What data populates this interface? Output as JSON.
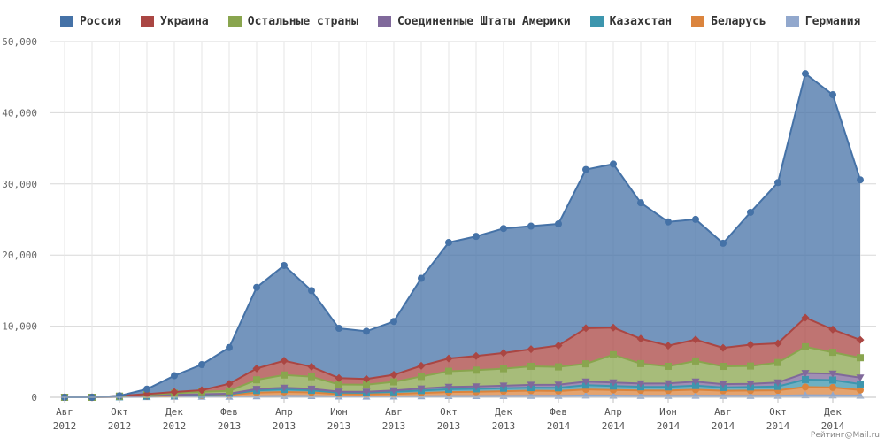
{
  "watermark": "Рейтинг@Mail.ru",
  "chart_data": {
    "type": "area",
    "stacked": true,
    "title": "",
    "xlabel": "",
    "ylabel": "",
    "ylim": [
      0,
      50000
    ],
    "yticks": [
      0,
      10000,
      20000,
      30000,
      40000,
      50000
    ],
    "ytick_labels": [
      "0",
      "10,000",
      "20,000",
      "30,000",
      "40,000",
      "50,000"
    ],
    "grid": true,
    "legend_position": "top-left",
    "x": [
      "2012-08",
      "2012-09",
      "2012-10",
      "2012-11",
      "2012-12",
      "2013-01",
      "2013-02",
      "2013-03",
      "2013-04",
      "2013-05",
      "2013-06",
      "2013-07",
      "2013-08",
      "2013-09",
      "2013-10",
      "2013-11",
      "2013-12",
      "2014-01",
      "2014-02",
      "2014-03",
      "2014-04",
      "2014-05",
      "2014-06",
      "2014-07",
      "2014-08",
      "2014-09",
      "2014-10",
      "2014-11",
      "2014-12",
      "2015-01"
    ],
    "xtick_labels": [
      {
        "month": "Авг",
        "year": "2012"
      },
      {
        "month": "Окт",
        "year": "2012"
      },
      {
        "month": "Дек",
        "year": "2012"
      },
      {
        "month": "Фев",
        "year": "2013"
      },
      {
        "month": "Апр",
        "year": "2013"
      },
      {
        "month": "Июн",
        "year": "2013"
      },
      {
        "month": "Авг",
        "year": "2013"
      },
      {
        "month": "Окт",
        "year": "2013"
      },
      {
        "month": "Дек",
        "year": "2013"
      },
      {
        "month": "Фев",
        "year": "2014"
      },
      {
        "month": "Апр",
        "year": "2014"
      },
      {
        "month": "Июн",
        "year": "2014"
      },
      {
        "month": "Авг",
        "year": "2014"
      },
      {
        "month": "Окт",
        "year": "2014"
      },
      {
        "month": "Дек",
        "year": "2014"
      }
    ],
    "series": [
      {
        "name": "Германия",
        "color": "#92a8cd",
        "marker": "triangle",
        "values": [
          0,
          0,
          30,
          50,
          70,
          90,
          100,
          160,
          200,
          180,
          120,
          110,
          120,
          150,
          180,
          190,
          200,
          210,
          210,
          260,
          250,
          220,
          220,
          240,
          210,
          220,
          230,
          300,
          280,
          250
        ]
      },
      {
        "name": "Беларусь",
        "color": "#db843d",
        "marker": "circle",
        "values": [
          0,
          0,
          30,
          80,
          150,
          200,
          240,
          500,
          550,
          500,
          330,
          300,
          350,
          450,
          550,
          580,
          650,
          720,
          670,
          850,
          780,
          750,
          730,
          830,
          700,
          730,
          750,
          1150,
          1100,
          770
        ]
      },
      {
        "name": "Казахстан",
        "color": "#3d96ae",
        "marker": "square",
        "values": [
          0,
          0,
          20,
          50,
          70,
          80,
          100,
          300,
          350,
          300,
          200,
          220,
          300,
          350,
          400,
          420,
          430,
          430,
          450,
          600,
          550,
          500,
          510,
          580,
          470,
          500,
          550,
          1050,
          1050,
          850
        ]
      },
      {
        "name": "Соединенные Штаты Америки",
        "color": "#80699b",
        "marker": "triangle-down",
        "values": [
          0,
          0,
          10,
          30,
          50,
          60,
          60,
          200,
          240,
          220,
          150,
          150,
          200,
          280,
          330,
          330,
          350,
          400,
          450,
          500,
          510,
          470,
          500,
          560,
          470,
          450,
          560,
          900,
          900,
          900
        ]
      },
      {
        "name": "Остальные страны",
        "color": "#89a54e",
        "marker": "square",
        "values": [
          0,
          0,
          70,
          160,
          240,
          350,
          400,
          1300,
          1800,
          1700,
          1000,
          1000,
          1200,
          1700,
          2200,
          2300,
          2400,
          2600,
          2500,
          2500,
          3900,
          2800,
          2400,
          2900,
          2500,
          2500,
          2800,
          3700,
          3000,
          2800
        ]
      },
      {
        "name": "Украина",
        "color": "#aa4643",
        "marker": "diamond",
        "values": [
          0,
          0,
          40,
          80,
          160,
          220,
          1000,
          1600,
          2000,
          1400,
          900,
          800,
          1000,
          1500,
          1800,
          2000,
          2200,
          2400,
          3000,
          5000,
          3800,
          3500,
          2900,
          3000,
          2600,
          3000,
          2700,
          4100,
          3200,
          2500
        ]
      },
      {
        "name": "Россия",
        "color": "#4572a7",
        "marker": "circle",
        "values": [
          0,
          0,
          0,
          700,
          2300,
          3600,
          5100,
          11400,
          13400,
          10700,
          7000,
          6700,
          7500,
          12300,
          16300,
          16800,
          17500,
          17300,
          17100,
          22300,
          23000,
          19100,
          17400,
          16900,
          14700,
          18600,
          22600,
          34300,
          33000,
          22500
        ]
      }
    ],
    "legend_order": [
      "Россия",
      "Украина",
      "Остальные страны",
      "Соединенные Штаты Америки",
      "Казахстан",
      "Беларусь",
      "Германия"
    ]
  }
}
